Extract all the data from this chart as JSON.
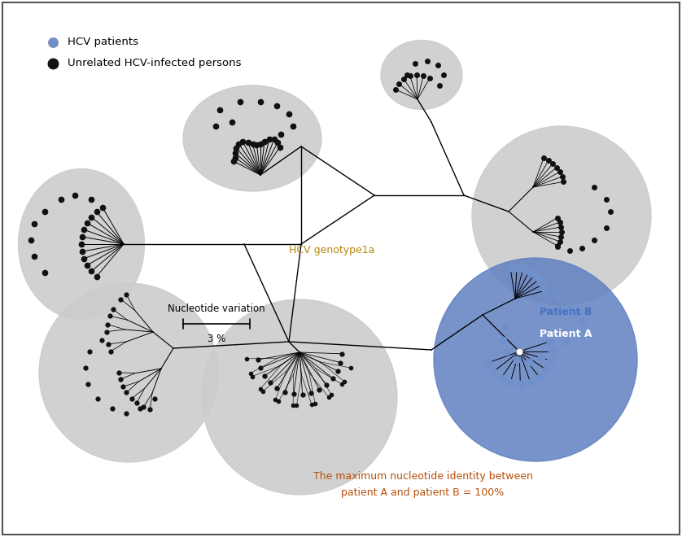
{
  "legend_label_patients": "HCV patients",
  "legend_label_unrelated": "Unrelated HCV-infected persons",
  "genotype_label": "HCV genotype1a",
  "genotype_color": "#b8860b",
  "scale_label": "Nucleotide variation",
  "scale_percent": "3 %",
  "bottom_text_line1": "The maximum nucleotide identity between",
  "bottom_text_line2": "patient A and patient B = 100%",
  "bottom_text_color": "#b8500a",
  "patient_b_label": "Patient B",
  "patient_a_label": "Patient A",
  "patient_label_color_b": "#4472c4",
  "patient_dot_color": "#7090cc",
  "unrelated_dot_color": "#111111",
  "cluster_bg_gray": "#cccccc",
  "cluster_bg_blue": "#6080c0",
  "background_color": "#ffffff",
  "fig_width": 8.38,
  "fig_height": 6.6,
  "dpi": 100
}
